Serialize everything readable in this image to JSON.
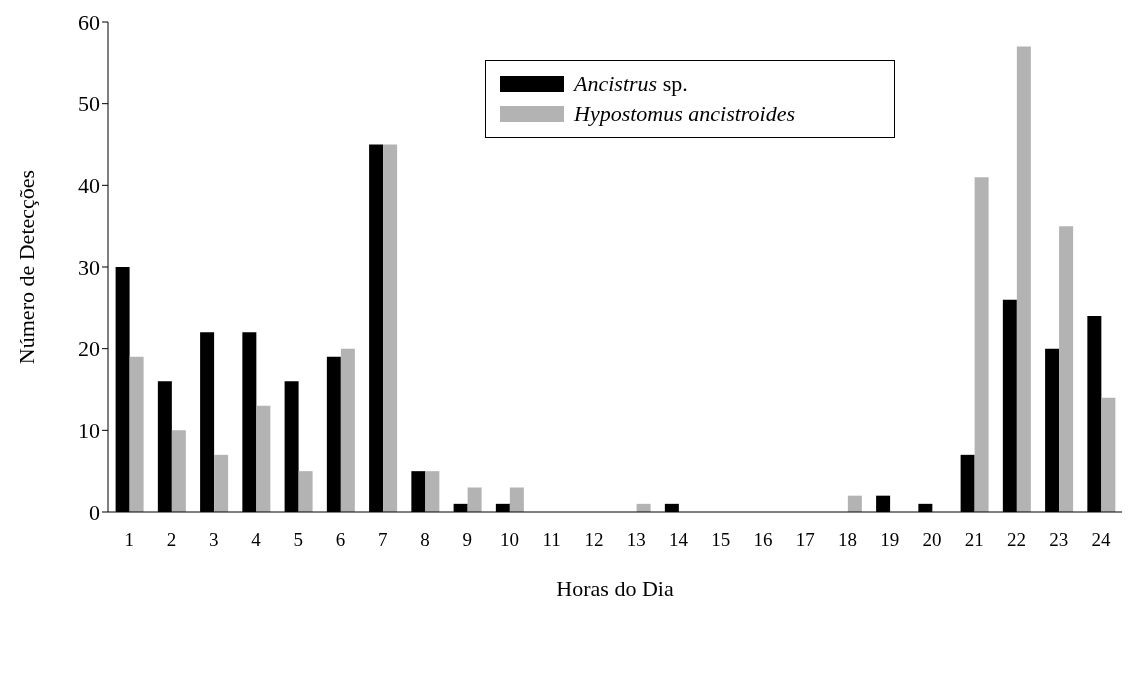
{
  "chart_data": {
    "type": "bar",
    "xlabel": "Horas do Dia",
    "ylabel": "Número de Detecções",
    "categories": [
      "1",
      "2",
      "3",
      "4",
      "5",
      "6",
      "7",
      "8",
      "9",
      "10",
      "11",
      "12",
      "13",
      "14",
      "15",
      "16",
      "17",
      "18",
      "19",
      "20",
      "21",
      "22",
      "23",
      "24"
    ],
    "series": [
      {
        "name": "Ancistrus sp.",
        "color": "#000000",
        "values": [
          30,
          16,
          22,
          22,
          16,
          19,
          45,
          5,
          1,
          1,
          0,
          0,
          0,
          1,
          0,
          0,
          0,
          0,
          2,
          1,
          7,
          26,
          20,
          24
        ]
      },
      {
        "name": "Hypostomus ancistroides",
        "color": "#b3b3b3",
        "values": [
          19,
          10,
          7,
          13,
          5,
          20,
          45,
          5,
          3,
          3,
          0,
          0,
          1,
          0,
          0,
          0,
          0,
          2,
          0,
          0,
          41,
          57,
          35,
          14
        ]
      }
    ],
    "ylim": [
      0,
      60
    ],
    "yticks": [
      0,
      10,
      20,
      30,
      40,
      50,
      60
    ],
    "grid": false,
    "legend": "top right"
  }
}
